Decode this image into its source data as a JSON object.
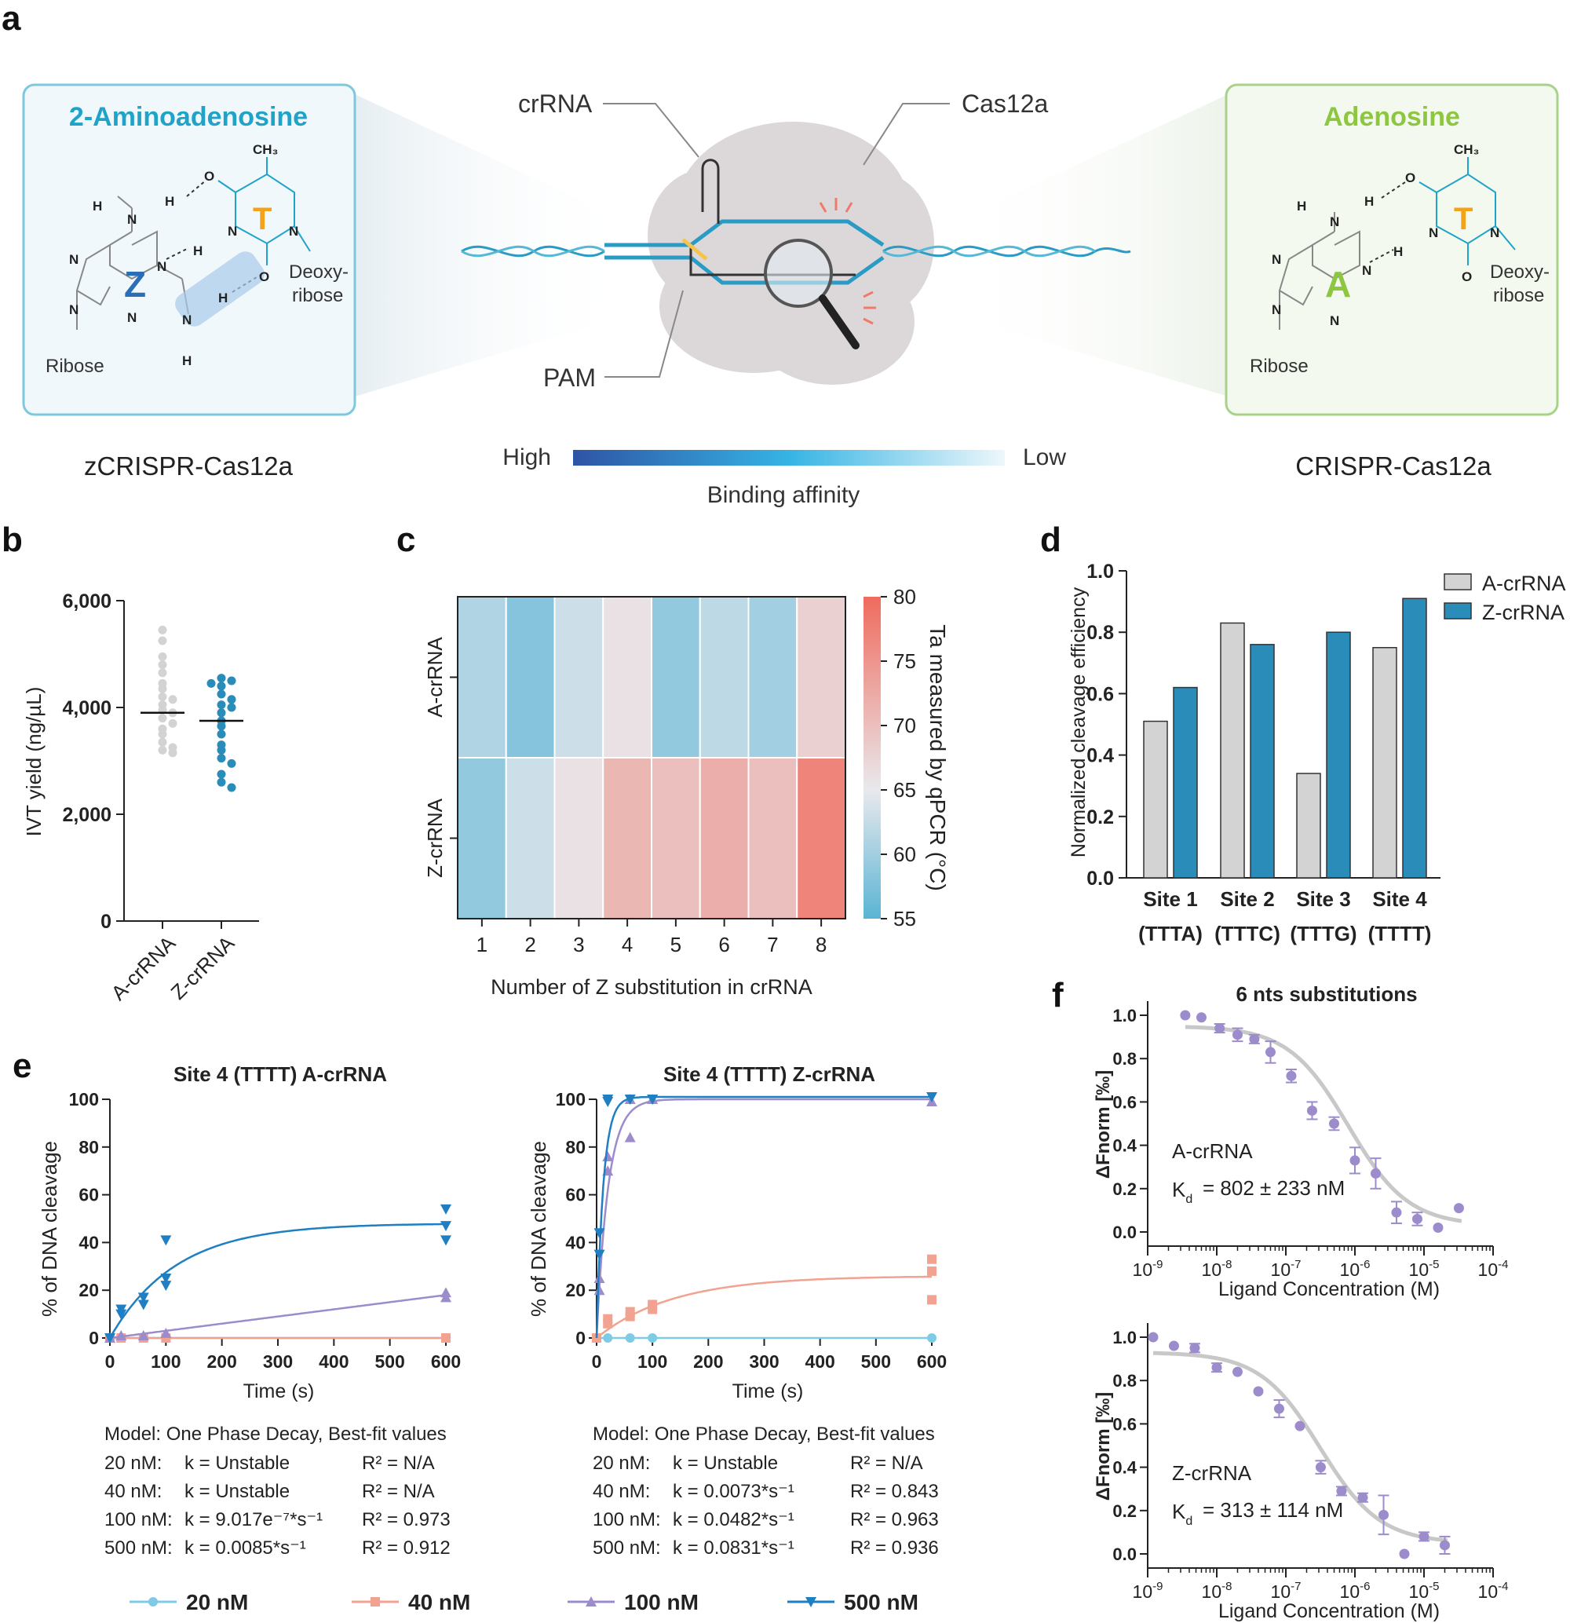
{
  "panel_labels": {
    "a": "a",
    "b": "b",
    "c": "c",
    "d": "d",
    "e": "e",
    "f": "f"
  },
  "colors": {
    "light_gray": "#d3d3d3",
    "z_blue": "#2a8cb8",
    "teal_box": "#f1f8fb",
    "teal_border": "#7ec8dd",
    "green_box": "#f3f9ee",
    "green_border": "#a8d28a",
    "orange": "#f5a21b",
    "green_a": "#8dc63f",
    "c20": "#7ecbe6",
    "c40": "#f2a290",
    "c100": "#9c8ccc",
    "c500": "#1f7fc2",
    "fit_gray": "#c8c8c8"
  },
  "panel_a": {
    "left_title": "2-Aminoadenosine",
    "right_title": "Adenosine",
    "left_caption": "zCRISPR-Cas12a",
    "right_caption": "CRISPR-Cas12a",
    "crRNA": "crRNA",
    "cas": "Cas12a",
    "pam": "PAM",
    "high": "High",
    "low": "Low",
    "affinity": "Binding affinity",
    "left_chem": {
      "ch3": "CH₃",
      "base": "Z",
      "pair": "T",
      "deoxy1": "Deoxy-",
      "deoxy2": "ribose",
      "ribose": "Ribose",
      "n": "N",
      "h": "H",
      "o": "O"
    },
    "right_chem": {
      "ch3": "CH₃",
      "base": "A",
      "pair": "T",
      "deoxy1": "Deoxy-",
      "deoxy2": "ribose",
      "ribose": "Ribose",
      "n": "N",
      "h": "H",
      "o": "O"
    }
  },
  "chart_data": [
    {
      "panel": "b",
      "type": "scatter",
      "ylabel": "IVT yield (ng/µL)",
      "ylim": [
        0,
        6000
      ],
      "yticks": [
        "0",
        "2,000",
        "4,000",
        "6,000"
      ],
      "categories": [
        "A-crRNA",
        "Z-crRNA"
      ],
      "series": [
        {
          "name": "A-crRNA",
          "mean": 3900,
          "values": [
            5450,
            5250,
            4950,
            4800,
            4650,
            4450,
            4350,
            4200,
            4150,
            4050,
            3950,
            3900,
            3800,
            3700,
            3600,
            3500,
            3350,
            3250,
            3200,
            3150
          ]
        },
        {
          "name": "Z-crRNA",
          "mean": 3750,
          "values": [
            4550,
            4500,
            4450,
            4400,
            4250,
            4150,
            4050,
            4000,
            3900,
            3750,
            3650,
            3500,
            3300,
            3200,
            3050,
            2950,
            2750,
            2600,
            2500
          ]
        }
      ]
    },
    {
      "panel": "c",
      "type": "heatmap",
      "xlabel": "Number of Z substitution in crRNA",
      "columns": [
        "1",
        "2",
        "3",
        "4",
        "5",
        "6",
        "7",
        "8"
      ],
      "rows": [
        "A-crRNA",
        "Z-crRNA"
      ],
      "values": [
        [
          61,
          58,
          63,
          66,
          59,
          62,
          60,
          68
        ],
        [
          59,
          63,
          66,
          71,
          70,
          72,
          70,
          77
        ]
      ],
      "colorbar": {
        "label": "Ta measured by qPCR (°C)",
        "min": 55,
        "max": 80,
        "ticks": [
          "55",
          "60",
          "65",
          "70",
          "75",
          "80"
        ]
      }
    },
    {
      "panel": "d",
      "type": "bar",
      "ylabel": "Normalized cleavage efficiency",
      "ylim": [
        0,
        1.0
      ],
      "yticks": [
        "0.0",
        "0.2",
        "0.4",
        "0.6",
        "0.8",
        "1.0"
      ],
      "categories": [
        "Site 1",
        "Site 2",
        "Site 3",
        "Site 4"
      ],
      "subcategories": [
        "(TTTA)",
        "(TTTC)",
        "(TTTG)",
        "(TTTT)"
      ],
      "series": [
        {
          "name": "A-crRNA",
          "values": [
            0.51,
            0.83,
            0.34,
            0.75
          ]
        },
        {
          "name": "Z-crRNA",
          "values": [
            0.62,
            0.76,
            0.8,
            0.91
          ]
        }
      ]
    },
    {
      "panel": "e-left",
      "type": "line",
      "title": "Site 4 (TTTT) A-crRNA",
      "xlabel": "Time (s)",
      "ylabel": "% of DNA cleavage",
      "xlim": [
        0,
        600
      ],
      "ylim": [
        0,
        100
      ],
      "xticks": [
        "0",
        "100",
        "200",
        "300",
        "400",
        "500",
        "600"
      ],
      "yticks": [
        "0",
        "20",
        "40",
        "60",
        "80",
        "100"
      ],
      "series": [
        {
          "name": "20 nM",
          "points": [
            [
              0,
              0
            ],
            [
              20,
              0
            ],
            [
              60,
              0
            ],
            [
              100,
              0
            ],
            [
              600,
              0
            ]
          ],
          "fit": {
            "type": "flat",
            "plateau": 0
          }
        },
        {
          "name": "40 nM",
          "points": [
            [
              0,
              0
            ],
            [
              20,
              0
            ],
            [
              60,
              0
            ],
            [
              100,
              0
            ],
            [
              600,
              0
            ]
          ],
          "fit": {
            "type": "flat",
            "plateau": 0
          }
        },
        {
          "name": "100 nM",
          "points": [
            [
              0,
              0
            ],
            [
              20,
              1
            ],
            [
              60,
              1
            ],
            [
              100,
              2
            ],
            [
              600,
              17
            ],
            [
              600,
              19
            ]
          ],
          "fit": {
            "type": "linear",
            "slope": 0.03
          }
        },
        {
          "name": "500 nM",
          "points": [
            [
              0,
              0
            ],
            [
              20,
              10
            ],
            [
              20,
              12
            ],
            [
              60,
              14
            ],
            [
              60,
              17
            ],
            [
              100,
              22
            ],
            [
              100,
              25
            ],
            [
              100,
              41
            ],
            [
              600,
              41
            ],
            [
              600,
              47
            ],
            [
              600,
              54
            ]
          ],
          "fit": {
            "type": "exp",
            "plateau": 48,
            "k": 0.0085
          }
        }
      ],
      "model": {
        "title": "Model: One Phase Decay, Best-fit values",
        "rows": [
          {
            "conc": "20 nM:",
            "k": "k = Unstable",
            "r2": "R² = N/A"
          },
          {
            "conc": "40 nM:",
            "k": "k = Unstable",
            "r2": "R² = N/A"
          },
          {
            "conc": "100 nM:",
            "k": "k = 9.017e⁻⁷*s⁻¹",
            "r2": "R² = 0.973"
          },
          {
            "conc": "500 nM:",
            "k": "k = 0.0085*s⁻¹",
            "r2": "R² = 0.912"
          }
        ]
      }
    },
    {
      "panel": "e-right",
      "type": "line",
      "title": "Site 4 (TTTT) Z-crRNA",
      "xlabel": "Time (s)",
      "ylabel": "% of DNA cleavage",
      "xlim": [
        0,
        600
      ],
      "ylim": [
        0,
        100
      ],
      "xticks": [
        "0",
        "100",
        "200",
        "300",
        "400",
        "500",
        "600"
      ],
      "yticks": [
        "0",
        "20",
        "40",
        "60",
        "80",
        "100"
      ],
      "series": [
        {
          "name": "20 nM",
          "points": [
            [
              0,
              0
            ],
            [
              20,
              0
            ],
            [
              60,
              0
            ],
            [
              100,
              0
            ],
            [
              600,
              0
            ]
          ],
          "fit": {
            "type": "flat",
            "plateau": 0
          }
        },
        {
          "name": "40 nM",
          "points": [
            [
              0,
              0
            ],
            [
              20,
              6
            ],
            [
              20,
              8
            ],
            [
              60,
              9
            ],
            [
              60,
              11
            ],
            [
              100,
              12
            ],
            [
              100,
              14
            ],
            [
              600,
              16
            ],
            [
              600,
              28
            ],
            [
              600,
              33
            ]
          ],
          "fit": {
            "type": "exp",
            "plateau": 26,
            "k": 0.0073
          }
        },
        {
          "name": "100 nM",
          "points": [
            [
              5,
              20
            ],
            [
              5,
              25
            ],
            [
              20,
              70
            ],
            [
              20,
              76
            ],
            [
              60,
              84
            ],
            [
              60,
              100
            ],
            [
              100,
              100
            ],
            [
              600,
              99
            ]
          ],
          "fit": {
            "type": "exp",
            "plateau": 100,
            "k": 0.0482
          }
        },
        {
          "name": "500 nM",
          "points": [
            [
              5,
              35
            ],
            [
              5,
              44
            ],
            [
              20,
              99
            ],
            [
              20,
              100
            ],
            [
              60,
              100
            ],
            [
              100,
              100
            ],
            [
              600,
              101
            ]
          ],
          "fit": {
            "type": "exp",
            "plateau": 101,
            "k": 0.0831
          }
        }
      ],
      "model": {
        "title": "Model: One Phase Decay, Best-fit values",
        "rows": [
          {
            "conc": "20 nM:",
            "k": "k = Unstable",
            "r2": "R² = N/A"
          },
          {
            "conc": "40 nM:",
            "k": "k = 0.0073*s⁻¹",
            "r2": "R² = 0.843"
          },
          {
            "conc": "100 nM:",
            "k": "k = 0.0482*s⁻¹",
            "r2": "R² = 0.963"
          },
          {
            "conc": "500 nM:",
            "k": "k = 0.0831*s⁻¹",
            "r2": "R² = 0.936"
          }
        ]
      }
    },
    {
      "panel": "f-top",
      "type": "scatter",
      "title": "6 nts substitutions",
      "xlabel": "Ligand Concentration (M)",
      "ylabel": "ΔFnorm [‰]",
      "xscale": "log",
      "xlim": [
        1e-09,
        0.0001
      ],
      "ylim": [
        0,
        1.0
      ],
      "yticks": [
        "0.0",
        "0.2",
        "0.4",
        "0.6",
        "0.8",
        "1.0"
      ],
      "label": "A-crRNA",
      "kd": "= 802 ± 233 nM",
      "fit": {
        "top": 0.95,
        "bottom": 0.03,
        "kd": 8.02e-07,
        "hill": 1.0
      },
      "points": [
        {
          "x": 3.5e-09,
          "y": 1.0,
          "err": 0
        },
        {
          "x": 6e-09,
          "y": 0.99,
          "err": 0
        },
        {
          "x": 1.1e-08,
          "y": 0.94,
          "err": 0.02
        },
        {
          "x": 2e-08,
          "y": 0.91,
          "err": 0.03
        },
        {
          "x": 3.5e-08,
          "y": 0.89,
          "err": 0.02
        },
        {
          "x": 6e-08,
          "y": 0.83,
          "err": 0.05
        },
        {
          "x": 1.2e-07,
          "y": 0.72,
          "err": 0.03
        },
        {
          "x": 2.4e-07,
          "y": 0.56,
          "err": 0.04
        },
        {
          "x": 5e-07,
          "y": 0.5,
          "err": 0.03
        },
        {
          "x": 1e-06,
          "y": 0.33,
          "err": 0.06
        },
        {
          "x": 2e-06,
          "y": 0.27,
          "err": 0.07
        },
        {
          "x": 4e-06,
          "y": 0.09,
          "err": 0.05
        },
        {
          "x": 8e-06,
          "y": 0.06,
          "err": 0.03
        },
        {
          "x": 1.6e-05,
          "y": 0.02,
          "err": 0
        },
        {
          "x": 3.2e-05,
          "y": 0.11,
          "err": 0
        }
      ]
    },
    {
      "panel": "f-bottom",
      "type": "scatter",
      "xlabel": "Ligand Concentration (M)",
      "ylabel": "ΔFnorm [‰]",
      "xscale": "log",
      "xlim": [
        1e-09,
        0.0001
      ],
      "ylim": [
        0,
        1.0
      ],
      "yticks": [
        "0.0",
        "0.2",
        "0.4",
        "0.6",
        "0.8",
        "1.0"
      ],
      "label": "Z-crRNA",
      "kd": "= 313 ± 114 nM",
      "fit": {
        "top": 0.93,
        "bottom": 0.05,
        "kd": 3.13e-07,
        "hill": 1.0
      },
      "points": [
        {
          "x": 1.2e-09,
          "y": 1.0,
          "err": 0
        },
        {
          "x": 2.4e-09,
          "y": 0.96,
          "err": 0
        },
        {
          "x": 4.8e-09,
          "y": 0.95,
          "err": 0.02
        },
        {
          "x": 1e-08,
          "y": 0.86,
          "err": 0.02
        },
        {
          "x": 2e-08,
          "y": 0.84,
          "err": 0
        },
        {
          "x": 4e-08,
          "y": 0.75,
          "err": 0
        },
        {
          "x": 8e-08,
          "y": 0.67,
          "err": 0.04
        },
        {
          "x": 1.6e-07,
          "y": 0.59,
          "err": 0
        },
        {
          "x": 3.2e-07,
          "y": 0.4,
          "err": 0.03
        },
        {
          "x": 6.4e-07,
          "y": 0.29,
          "err": 0.02
        },
        {
          "x": 1.3e-06,
          "y": 0.26,
          "err": 0.02
        },
        {
          "x": 2.6e-06,
          "y": 0.18,
          "err": 0.09
        },
        {
          "x": 5.2e-06,
          "y": 0.0,
          "err": 0
        },
        {
          "x": 1e-05,
          "y": 0.08,
          "err": 0.02
        },
        {
          "x": 2e-05,
          "y": 0.04,
          "err": 0.04
        }
      ]
    }
  ],
  "legend_bottom": [
    "20 nM",
    "40 nM",
    "100 nM",
    "500 nM"
  ]
}
